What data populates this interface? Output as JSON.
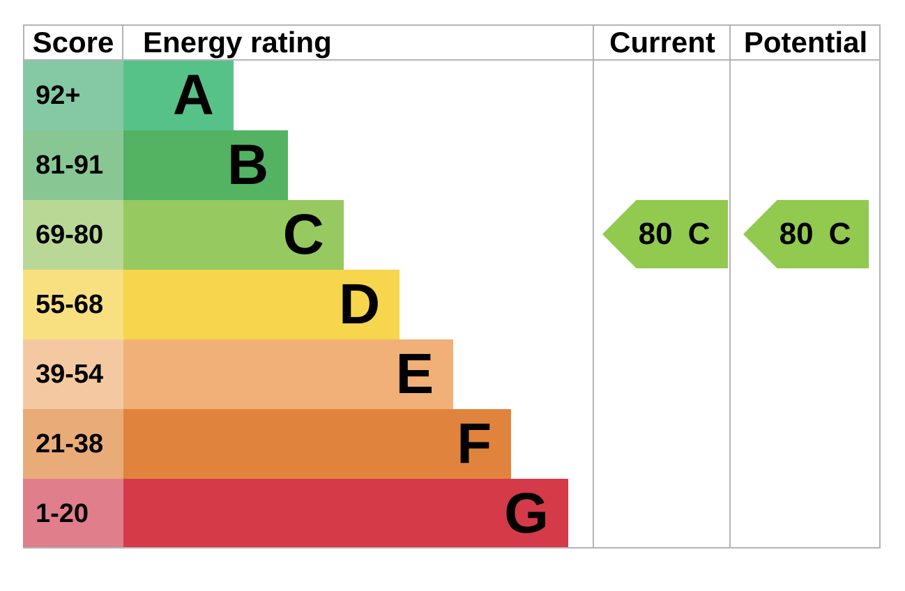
{
  "header": {
    "score": "Score",
    "rating": "Energy rating",
    "current": "Current",
    "potential": "Potential"
  },
  "bands": [
    {
      "range": "92+",
      "letter": "A",
      "width_pct": 23.4,
      "bar_color": "#57c288",
      "range_color": "#84c9a4"
    },
    {
      "range": "81-91",
      "letter": "B",
      "width_pct": 35.0,
      "bar_color": "#53b363",
      "range_color": "#88c793"
    },
    {
      "range": "69-80",
      "letter": "C",
      "width_pct": 46.8,
      "bar_color": "#96c95f",
      "range_color": "#b9d896"
    },
    {
      "range": "55-68",
      "letter": "D",
      "width_pct": 58.7,
      "bar_color": "#f7d54c",
      "range_color": "#f8e080"
    },
    {
      "range": "39-54",
      "letter": "E",
      "width_pct": 70.1,
      "bar_color": "#f0b077",
      "range_color": "#f4c9a2"
    },
    {
      "range": "21-38",
      "letter": "F",
      "width_pct": 82.4,
      "bar_color": "#e0843d",
      "range_color": "#e9ab78"
    },
    {
      "range": "1-20",
      "letter": "G",
      "width_pct": 94.5,
      "bar_color": "#d53a49",
      "range_color": "#e17e8c"
    }
  ],
  "current_arrow": {
    "score": "80",
    "band": "C",
    "color": "#92c94f"
  },
  "potential_arrow": {
    "score": "80",
    "band": "C",
    "color": "#92c94f"
  },
  "colors": {
    "border": "#b1b4b6",
    "text": "#000000"
  },
  "chart_data": {
    "type": "bar",
    "title": "Energy rating",
    "orientation": "horizontal",
    "categories": [
      "A",
      "B",
      "C",
      "D",
      "E",
      "F",
      "G"
    ],
    "category_score_ranges": [
      "92+",
      "81-91",
      "69-80",
      "55-68",
      "39-54",
      "21-38",
      "1-20"
    ],
    "bar_lengths_pct_of_track": [
      23.4,
      35.0,
      46.8,
      58.7,
      70.1,
      82.4,
      94.5
    ],
    "series": [
      {
        "name": "Current",
        "value": 80,
        "band": "C"
      },
      {
        "name": "Potential",
        "value": 80,
        "band": "C"
      }
    ],
    "columns": [
      "Score",
      "Energy rating",
      "Current",
      "Potential"
    ],
    "legend_position": "none",
    "grid": false
  }
}
